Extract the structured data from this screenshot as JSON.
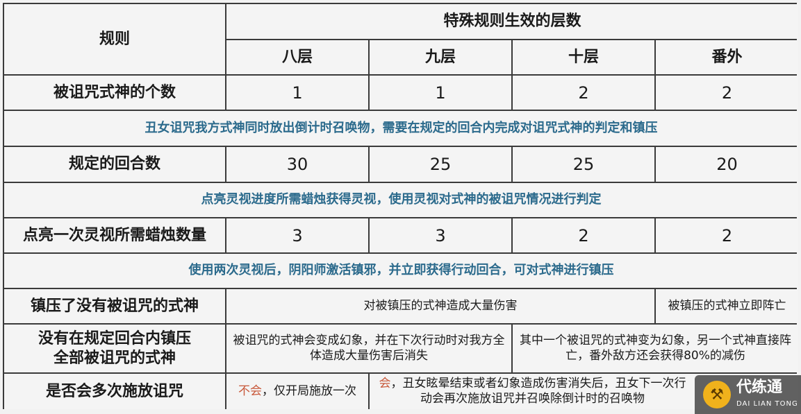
{
  "header": {
    "rule": "规则",
    "group": "特殊规则生效的层数",
    "levels": [
      "八层",
      "九层",
      "十层",
      "番外"
    ]
  },
  "rows": {
    "count": {
      "label": "被诅咒式神的个数",
      "values": [
        "1",
        "1",
        "2",
        "2"
      ]
    },
    "note1": "丑女诅咒我方式神同时放出倒计时召唤物，需要在规定的回合内完成对诅咒式神的判定和镇压",
    "turns": {
      "label": "规定的回合数",
      "values": [
        "30",
        "25",
        "25",
        "20"
      ]
    },
    "note2": "点亮灵视进度所需蜡烛获得灵视，使用灵视对式神的被诅咒情况进行判定",
    "candles": {
      "label": "点亮一次灵视所需蜡烛数量",
      "values": [
        "3",
        "3",
        "2",
        "2"
      ]
    },
    "note3": "使用两次灵视后，阴阳师激活镇邪，并立即获得行动回合，可对式神进行镇压",
    "wrong": {
      "label": "镇压了没有被诅咒的式神",
      "a": "对被镇压的式神造成大量伤害",
      "b": "被镇压的式神立即阵亡"
    },
    "timeout": {
      "label": "没有在规定回合内镇压全部被诅咒的式神",
      "a": "被诅咒的式神会变成幻象，并在下次行动时对我方全体造成大量伤害后消失",
      "b": "其中一个被诅咒的式神变为幻象，另一个式神直接阵亡，番外敌方还会获得80%的减伤"
    },
    "multi": {
      "label": "是否会多次施放诅咒",
      "a_hl": "不会",
      "a": "，仅开局施放一次",
      "b_hl": "会",
      "b": "，丑女眩晕结束或者幻象造成伤害消失后，丑女下一次行动会再次施放诅咒并召唤除倒计时的召唤物"
    }
  },
  "colors": {
    "note_text": "#2b6a8c",
    "highlight": "#c8583a",
    "border": "#3a3a3a",
    "cell_bg": "#f4f4f4"
  },
  "watermark": {
    "name": "代练通",
    "sub": "DAI LIAN TONG",
    "icon": "logo-icon"
  }
}
